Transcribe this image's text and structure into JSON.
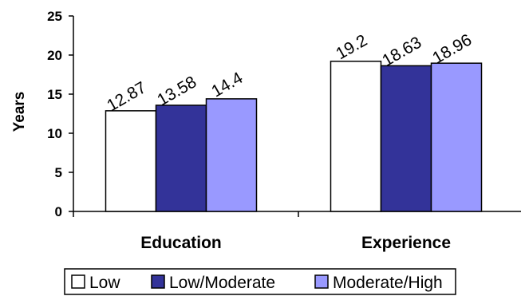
{
  "chart_data": {
    "type": "bar",
    "title": "",
    "xlabel": "",
    "ylabel": "Years",
    "categories": [
      "Education",
      "Experience"
    ],
    "series": [
      {
        "name": "Low",
        "values": [
          12.87,
          19.2
        ],
        "labels": [
          "12.87",
          "19.2"
        ],
        "color": "#ffffff"
      },
      {
        "name": "Low/Moderate",
        "values": [
          13.58,
          18.63
        ],
        "labels": [
          "13.58",
          "18.63"
        ],
        "color": "#333399"
      },
      {
        "name": "Moderate/High",
        "values": [
          14.4,
          18.96
        ],
        "labels": [
          "14.4",
          "18.96"
        ],
        "color": "#9999ff"
      }
    ],
    "ylim": [
      0,
      25
    ],
    "yticks": [
      0,
      5,
      10,
      15,
      20,
      25
    ],
    "grid": false,
    "legend": "bottom"
  }
}
